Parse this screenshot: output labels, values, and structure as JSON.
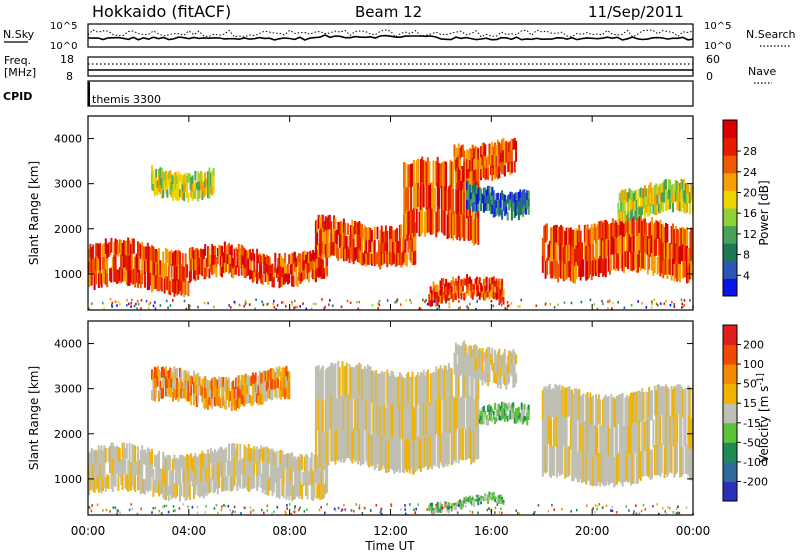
{
  "header": {
    "title": "Hokkaido (fitACF)",
    "beam": "Beam 12",
    "date": "11/Sep/2011"
  },
  "aux_panels": {
    "nsky_label": "N.Sky",
    "nsky_tick_top": "10^5",
    "nsky_tick_bottom": "10^0",
    "nsearch_label": "N.Search",
    "freq_label_1": "Freq.",
    "freq_label_2": "[MHz]",
    "freq_tick_top": "18",
    "freq_tick_bottom": "8",
    "nave_tick_top": "60",
    "nave_tick_bottom": "0",
    "nave_label": "Nave",
    "cpid_label": "CPID",
    "cpid_value": "themis 3300"
  },
  "chart_data": [
    {
      "type": "heatmap",
      "panel": "power",
      "ylabel": "Slant Range [km]",
      "yticks": [
        1000,
        2000,
        3000,
        4000
      ],
      "ylim": [
        200,
        4500
      ],
      "xlim": [
        0,
        24
      ],
      "colorbar": {
        "label": "Power [dB]",
        "ticks": [
          "4",
          "8",
          "12",
          "16",
          "20",
          "24",
          "28"
        ],
        "colors": [
          "#0a14e6",
          "#2a57b8",
          "#1b7a55",
          "#46a35a",
          "#8fd13a",
          "#f0d400",
          "#f5a000",
          "#ef5a00",
          "#e61b00",
          "#d80000"
        ]
      },
      "bands": [
        {
          "t": [
            0,
            4
          ],
          "r": [
            600,
            1700
          ],
          "level": "high"
        },
        {
          "t": [
            4,
            9.5
          ],
          "r": [
            800,
            1600
          ],
          "level": "high"
        },
        {
          "t": [
            9,
            13
          ],
          "r": [
            1200,
            2200
          ],
          "level": "high"
        },
        {
          "t": [
            12.5,
            15.5
          ],
          "r": [
            1700,
            3500
          ],
          "level": "high"
        },
        {
          "t": [
            14.5,
            17
          ],
          "r": [
            3100,
            4000
          ],
          "level": "high"
        },
        {
          "t": [
            18,
            24
          ],
          "r": [
            900,
            2200
          ],
          "level": "high"
        },
        {
          "t": [
            2.5,
            5
          ],
          "r": [
            2700,
            3400
          ],
          "level": "medium"
        },
        {
          "t": [
            13.5,
            16.5
          ],
          "r": [
            300,
            900
          ],
          "level": "high"
        },
        {
          "t": [
            15,
            17.5
          ],
          "r": [
            2300,
            3000
          ],
          "level": "low"
        },
        {
          "t": [
            21,
            24
          ],
          "r": [
            2200,
            3000
          ],
          "level": "medium"
        }
      ]
    },
    {
      "type": "heatmap",
      "panel": "velocity",
      "ylabel": "Slant Range [km]",
      "yticks": [
        1000,
        2000,
        3000,
        4000
      ],
      "ylim": [
        200,
        4500
      ],
      "xlim": [
        0,
        24
      ],
      "colorbar": {
        "label": "Velocity [m s^-1]",
        "ticks": [
          "200",
          "100",
          "50",
          "15",
          "-15",
          "-50",
          "-100",
          "-200"
        ],
        "colors": [
          "#2a30b8",
          "#2e6a9a",
          "#1f8a55",
          "#5bc23a",
          "#bfbfb3",
          "#f0b400",
          "#f58a00",
          "#ef4a00",
          "#e01e1e"
        ]
      },
      "bands": [
        {
          "t": [
            0,
            9.5
          ],
          "r": [
            600,
            1700
          ],
          "level": "ground"
        },
        {
          "t": [
            9,
            15.5
          ],
          "r": [
            1200,
            3500
          ],
          "level": "ground"
        },
        {
          "t": [
            14.5,
            17
          ],
          "r": [
            3100,
            4000
          ],
          "level": "ground"
        },
        {
          "t": [
            18,
            24
          ],
          "r": [
            900,
            3000
          ],
          "level": "ground"
        },
        {
          "t": [
            2.5,
            8
          ],
          "r": [
            2600,
            3400
          ],
          "level": "negative"
        },
        {
          "t": [
            15.5,
            17.5
          ],
          "r": [
            2100,
            2600
          ],
          "level": "positive"
        },
        {
          "t": [
            13.5,
            16.5
          ],
          "r": [
            300,
            600
          ],
          "level": "positive"
        }
      ]
    }
  ],
  "xaxis": {
    "label": "Time UT",
    "ticks": [
      "00:00",
      "04:00",
      "08:00",
      "12:00",
      "16:00",
      "20:00",
      "00:00"
    ]
  }
}
